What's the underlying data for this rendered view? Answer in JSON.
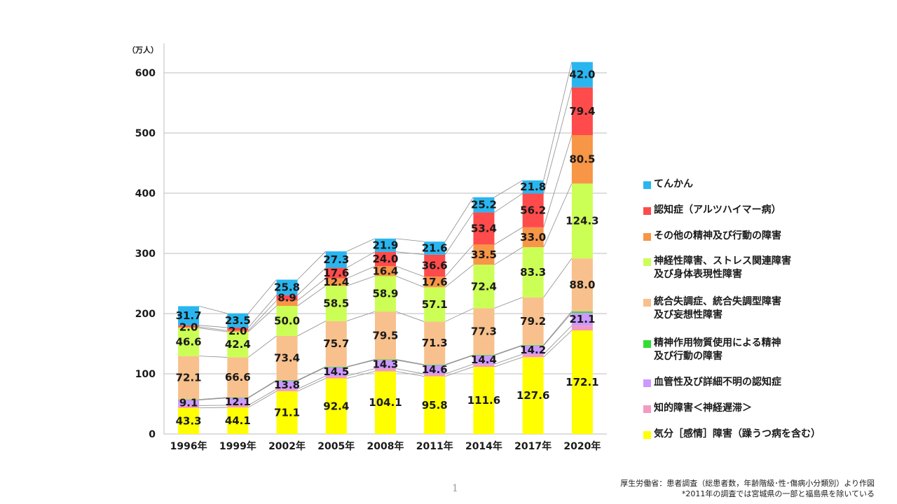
{
  "chart_data": {
    "type": "bar",
    "stacked": true,
    "unit_label": "（万人）",
    "categories": [
      "1996年",
      "1999年",
      "2002年",
      "2005年",
      "2008年",
      "2011年",
      "2014年",
      "2017年",
      "2020年"
    ],
    "ylim": [
      0,
      650
    ],
    "yticks": [
      "0",
      "100",
      "200",
      "300",
      "400",
      "500",
      "600"
    ],
    "grid": true,
    "legend_position": "right",
    "series": [
      {
        "name": "気分［感情］障害（躁うつ病を含む）",
        "color": "#FFFF00",
        "values": [
          43.3,
          44.1,
          71.1,
          92.4,
          104.1,
          95.8,
          111.6,
          127.6,
          172.1
        ]
      },
      {
        "name": "知的障害＜神経遅滞＞",
        "color": "#F49AC2",
        "values": [
          4.0,
          3.6,
          3.5,
          4.0,
          4.5,
          4.0,
          4.5,
          5.0,
          8.0
        ]
      },
      {
        "name": "血管性及び詳細不明の認知症",
        "color": "#CC99FF",
        "values": [
          9.1,
          12.1,
          13.8,
          14.5,
          14.3,
          14.6,
          14.4,
          14.2,
          21.1
        ]
      },
      {
        "name": "精神作用物質使用による精神\n及び行動の障害",
        "color": "#33DD33",
        "values": [
          1.0,
          1.0,
          1.0,
          1.0,
          1.0,
          1.0,
          1.0,
          1.0,
          2.5
        ]
      },
      {
        "name": "統合失調症、統合失調型障害\n及び妄想性障害",
        "color": "#F8C08C",
        "values": [
          72.1,
          66.6,
          73.4,
          75.7,
          79.5,
          71.3,
          77.3,
          79.2,
          88.0
        ]
      },
      {
        "name": "神経性障害、ストレス関連障害\n及び身体表現性障害",
        "color": "#CCFF55",
        "values": [
          46.6,
          42.4,
          50.0,
          58.5,
          58.9,
          57.1,
          72.4,
          83.3,
          124.3
        ]
      },
      {
        "name": "その他の精神及び行動の障害",
        "color": "#F79646",
        "values": [
          2.0,
          2.0,
          8.9,
          12.4,
          16.4,
          17.6,
          33.5,
          33.0,
          80.5
        ]
      },
      {
        "name": "認知症（アルツハイマー病）",
        "color": "#FF4B4B",
        "values": [
          2.5,
          5.0,
          8.9,
          17.6,
          24.0,
          36.6,
          53.4,
          56.2,
          79.4
        ]
      },
      {
        "name": "てんかん",
        "color": "#29B6F0",
        "values": [
          31.7,
          23.5,
          25.8,
          27.3,
          21.9,
          21.6,
          25.2,
          21.8,
          42.0
        ]
      }
    ],
    "data_labels": {
      "気分［感情］障害（躁うつ病を含む）": [
        "43.3",
        "44.1",
        "71.1",
        "92.4",
        "104.1",
        "95.8",
        "111.6",
        "127.6",
        "172.1"
      ],
      "血管性及び詳細不明の認知症": [
        "9.1",
        "12.1",
        "13.8",
        "14.5",
        "14.3",
        "14.6",
        "14.4",
        "14.2",
        "21.1"
      ],
      "統合失調症、統合失調型障害\n及び妄想性障害": [
        "72.1",
        "66.6",
        "73.4",
        "75.7",
        "79.5",
        "71.3",
        "77.3",
        "79.2",
        "88.0"
      ],
      "神経性障害、ストレス関連障害\n及び身体表現性障害": [
        "46.6",
        "42.4",
        "50.0",
        "58.5",
        "58.9",
        "57.1",
        "72.4",
        "83.3",
        "124.3"
      ],
      "その他の精神及び行動の障害": [
        "2.0",
        "2.0",
        "",
        "12.4",
        "16.4",
        "17.6",
        "33.5",
        "33.0",
        "80.5"
      ],
      "認知症（アルツハイマー病）": [
        "",
        "",
        "8.9",
        "17.6",
        "24.0",
        "36.6",
        "53.4",
        "56.2",
        "79.4"
      ],
      "てんかん": [
        "31.7",
        "23.5",
        "25.8",
        "27.3",
        "21.9",
        "21.6",
        "25.2",
        "21.8",
        "42.0"
      ]
    },
    "legend_order": [
      "てんかん",
      "認知症（アルツハイマー病）",
      "その他の精神及び行動の障害",
      "神経性障害、ストレス関連障害\n及び身体表現性障害",
      "統合失調症、統合失調型障害\n及び妄想性障害",
      "精神作用物質使用による精神\n及び行動の障害",
      "血管性及び詳細不明の認知症",
      "知的障害＜神経遅滞＞",
      "気分［感情］障害（躁うつ病を含む）"
    ]
  },
  "source": {
    "line1": "厚生労働省：患者調査（総患者数，年齢階級･性･傷病小分類別）より作図",
    "line2": "*2011年の調査では宮城県の一部と福島県を除いている"
  },
  "page_number": "1"
}
